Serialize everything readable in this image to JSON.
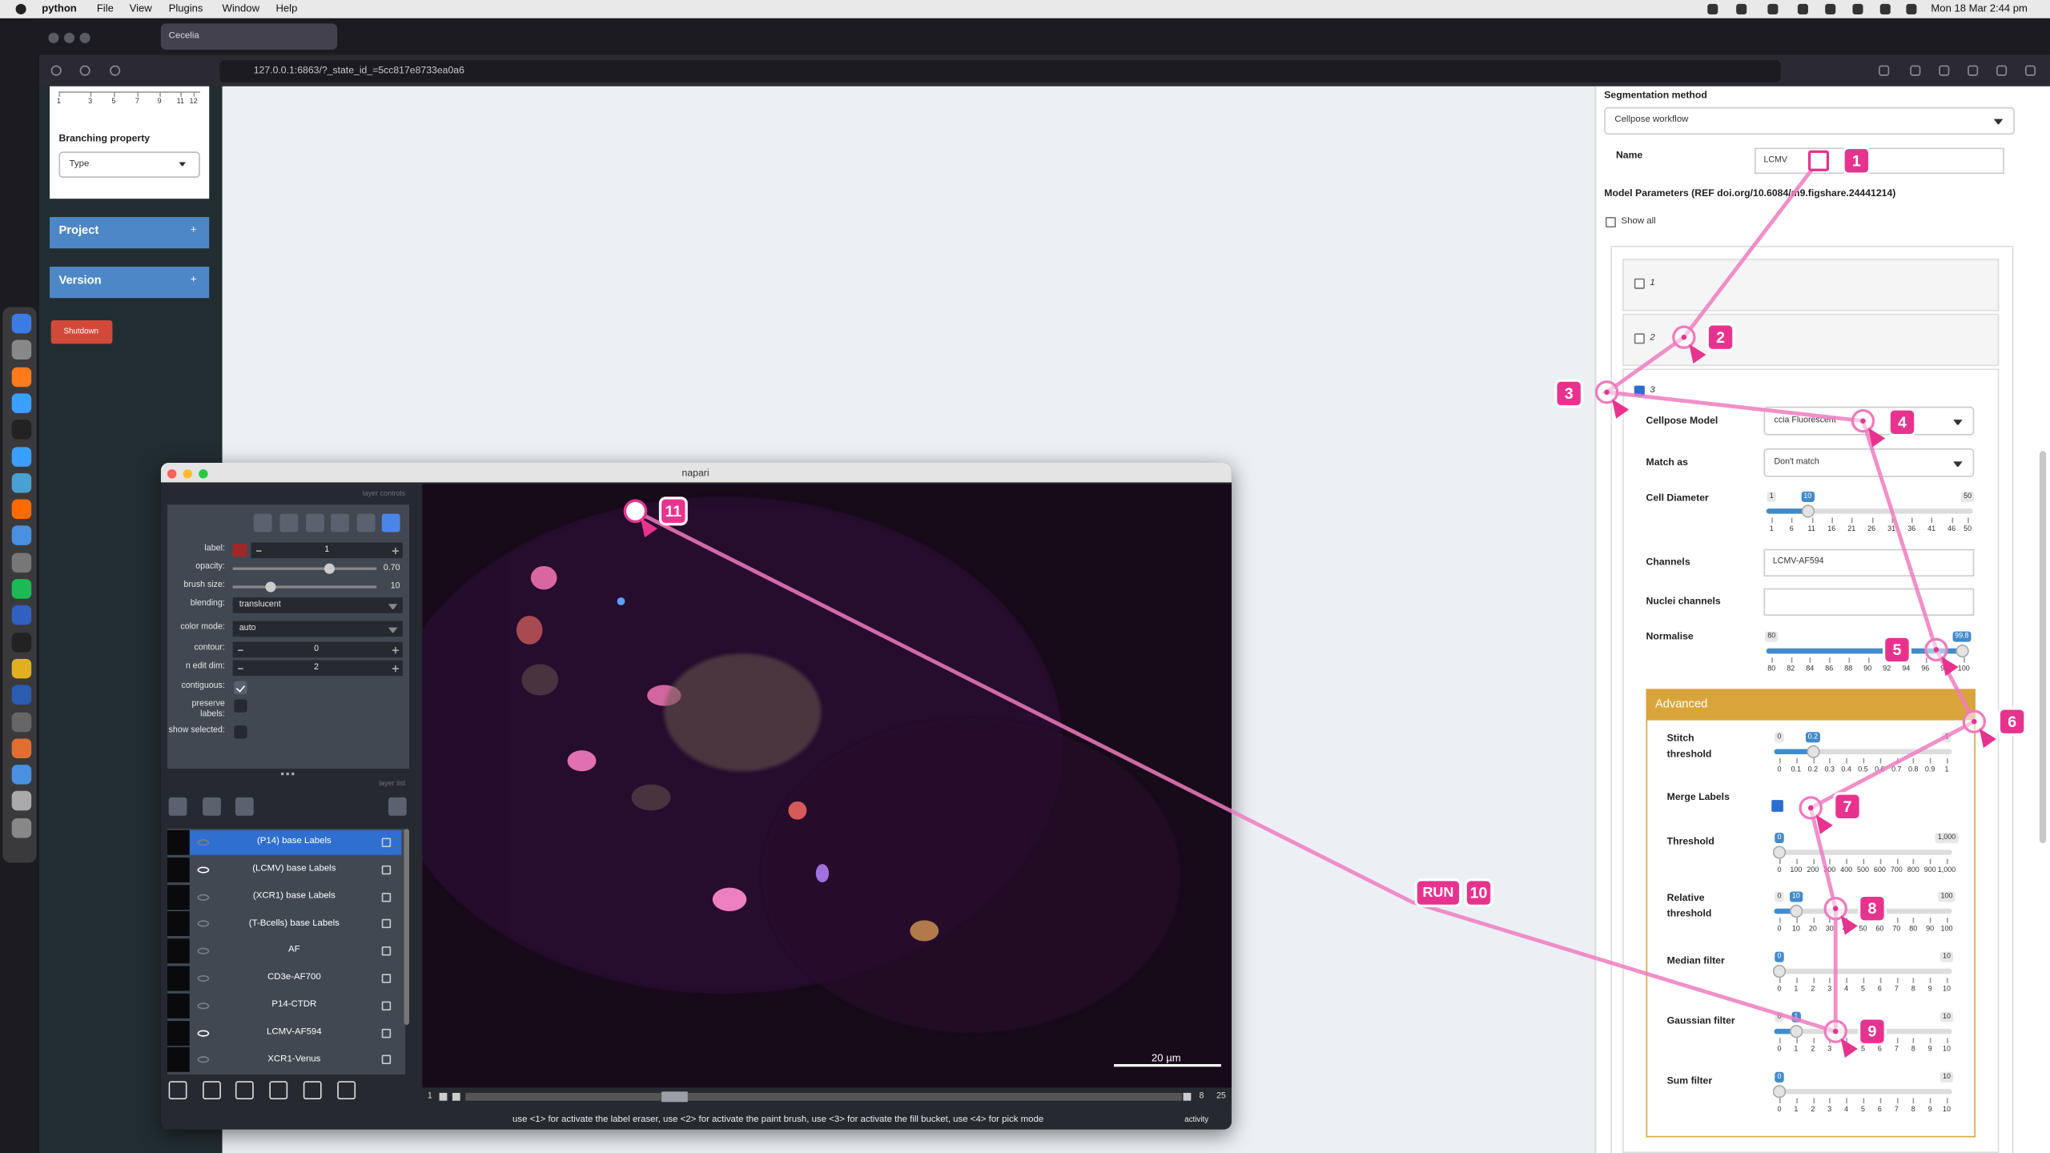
{
  "menubar": {
    "app": "python",
    "items": [
      "File",
      "View",
      "Plugins",
      "Window",
      "Help"
    ],
    "clock": "Mon 18 Mar 2:44 pm"
  },
  "browser": {
    "tab": "Cecelia",
    "url": "127.0.0.1:6863/?_state_id_=5cc817e8733ea0a6"
  },
  "sidebar": {
    "ticks": [
      1,
      3,
      5,
      7,
      9,
      11,
      12
    ],
    "branching_label": "Branching property",
    "branching_value": "Type",
    "project": "Project",
    "version": "Version",
    "plus": "+",
    "shutdown": "Shutdown"
  },
  "napari": {
    "title": "napari",
    "controls_header": "layer controls",
    "list_header": "layer list",
    "controls": [
      {
        "label": "label:",
        "value": 1
      },
      {
        "label": "opacity:",
        "value": "0.70"
      },
      {
        "label": "brush size:",
        "value": 10
      },
      {
        "label": "blending:",
        "value": "translucent"
      },
      {
        "label": "color mode:",
        "value": "auto"
      },
      {
        "label": "contour:",
        "value": 0
      },
      {
        "label": "n edit dim:",
        "value": 2
      },
      {
        "label": "contiguous:",
        "checked": true
      },
      {
        "label": "preserve labels:",
        "checked": false
      },
      {
        "label": "show selected:",
        "checked": false
      }
    ],
    "layers": [
      {
        "name": "(P14) base Labels",
        "visible": false
      },
      {
        "name": "(LCMV) base Labels",
        "visible": true
      },
      {
        "name": "(XCR1) base Labels",
        "visible": false
      },
      {
        "name": "(T-Bcells) base Labels",
        "visible": false
      },
      {
        "name": "AF",
        "visible": false
      },
      {
        "name": "CD3e-AF700",
        "visible": false
      },
      {
        "name": "P14-CTDR",
        "visible": false
      },
      {
        "name": "LCMV-AF594",
        "visible": true
      },
      {
        "name": "XCR1-Venus",
        "visible": false
      }
    ],
    "selected_layer": 0,
    "scale_bar": "20 µm",
    "slider": {
      "start": 1,
      "current": 8,
      "end": 25
    },
    "status": "use <1> for activate the label eraser, use <2> for activate the paint brush, use <3> for activate the fill bucket, use <4> for pick mode",
    "activity": "activity"
  },
  "panel": {
    "segmentation_label": "Segmentation method",
    "segmentation_value": "Cellpose workflow",
    "name_label": "Name",
    "name_value": "LCMV",
    "model_params": "Model Parameters (REF doi.org/10.6084/m9.figshare.24441214)",
    "show_all": "Show all",
    "items": [
      1,
      2,
      3
    ],
    "cellpose_model": {
      "label": "Cellpose Model",
      "value": "ccia Fluorescent"
    },
    "match_as": {
      "label": "Match as",
      "value": "Don't match"
    },
    "cell_diameter": {
      "label": "Cell Diameter",
      "min": 1,
      "max": 50,
      "value": 10,
      "ticks": [
        1,
        6,
        11,
        16,
        21,
        26,
        31,
        36,
        41,
        46,
        50
      ]
    },
    "channels": {
      "label": "Channels",
      "value": "LCMV-AF594"
    },
    "nuclei_channels": {
      "label": "Nuclei channels"
    },
    "normalise": {
      "label": "Normalise",
      "min": 80,
      "max": 100,
      "value": 99.8,
      "ticks": [
        80,
        82,
        84,
        86,
        88,
        90,
        92,
        94,
        96,
        98,
        100
      ]
    },
    "advanced": {
      "title": "Advanced",
      "merge_labels": {
        "label": "Merge Labels",
        "checked": true
      },
      "sliders": [
        {
          "label": "Stitch threshold",
          "min": 0,
          "max": 1,
          "value": 0.2,
          "ticks": [
            0,
            0.1,
            0.2,
            0.3,
            0.4,
            0.5,
            0.6,
            0.7,
            0.8,
            0.9,
            1
          ]
        },
        {
          "label": "Threshold",
          "min": 0,
          "max": {
            "value": 1000,
            "label": "1,000"
          },
          "value": 0,
          "ticks": [
            0,
            100,
            200,
            300,
            400,
            500,
            600,
            700,
            800,
            900,
            {
              "value": 1000,
              "label": "1,000"
            }
          ]
        },
        {
          "label": "Relative threshold",
          "min": 0,
          "max": 100,
          "value": 10,
          "ticks": [
            0,
            10,
            20,
            30,
            40,
            50,
            60,
            70,
            80,
            90,
            100
          ]
        },
        {
          "label": "Median filter",
          "min": 0,
          "max": 10,
          "value": 0,
          "ticks": [
            0,
            1,
            2,
            3,
            4,
            5,
            6,
            7,
            8,
            9,
            10
          ]
        },
        {
          "label": "Gaussian filter",
          "min": 0,
          "max": 10,
          "value": 1,
          "ticks": [
            0,
            1,
            2,
            3,
            4,
            5,
            6,
            7,
            8,
            9,
            10
          ]
        },
        {
          "label": "Sum filter",
          "min": 0,
          "max": 10,
          "value": 0,
          "ticks": [
            0,
            1,
            2,
            3,
            4,
            5,
            6,
            7,
            8,
            9,
            10
          ]
        }
      ]
    }
  },
  "annotations": {
    "steps": [
      1,
      2,
      3,
      4,
      5,
      6,
      7,
      8,
      9,
      10,
      11
    ],
    "run_label": "RUN"
  }
}
